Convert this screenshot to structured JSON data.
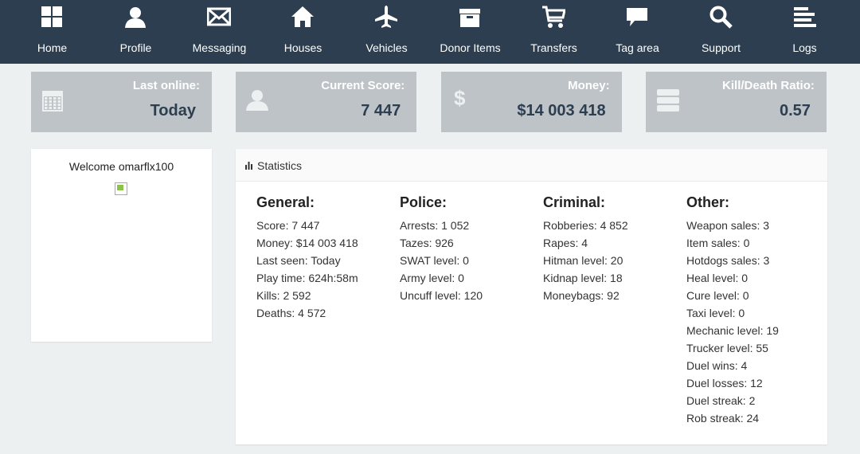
{
  "nav": [
    "Home",
    "Profile",
    "Messaging",
    "Houses",
    "Vehicles",
    "Donor Items",
    "Transfers",
    "Tag area",
    "Support",
    "Logs"
  ],
  "cards": [
    {
      "label": "Last online:",
      "value": "Today"
    },
    {
      "label": "Current Score:",
      "value": "7 447"
    },
    {
      "label": "Money:",
      "value": "$14 003 418"
    },
    {
      "label": "Kill/Death Ratio:",
      "value": "0.57"
    }
  ],
  "welcome": "Welcome omarflx100",
  "statistics": {
    "title": "Statistics",
    "columns": [
      {
        "heading": "General:",
        "lines": [
          "Score: 7 447",
          "Money: $14 003 418",
          "Last seen: Today",
          "Play time: 624h:58m",
          "Kills: 2 592",
          "Deaths: 4 572"
        ]
      },
      {
        "heading": "Police:",
        "lines": [
          "Arrests: 1 052",
          "Tazes: 926",
          "SWAT level: 0",
          "Army level: 0",
          "Uncuff level: 120"
        ]
      },
      {
        "heading": "Criminal:",
        "lines": [
          "Robberies: 4 852",
          "Rapes: 4",
          "Hitman level: 20",
          "Kidnap level: 18",
          "Moneybags: 92"
        ]
      },
      {
        "heading": "Other:",
        "lines": [
          "Weapon sales: 3",
          "Item sales: 0",
          "Hotdogs sales: 3",
          "Heal level: 0",
          "Cure level: 0",
          "Taxi level: 0",
          "Mechanic level: 19",
          "Trucker level: 55",
          "Duel wins: 4",
          "Duel losses: 12",
          "Duel streak: 2",
          "Rob streak: 24"
        ]
      }
    ]
  }
}
